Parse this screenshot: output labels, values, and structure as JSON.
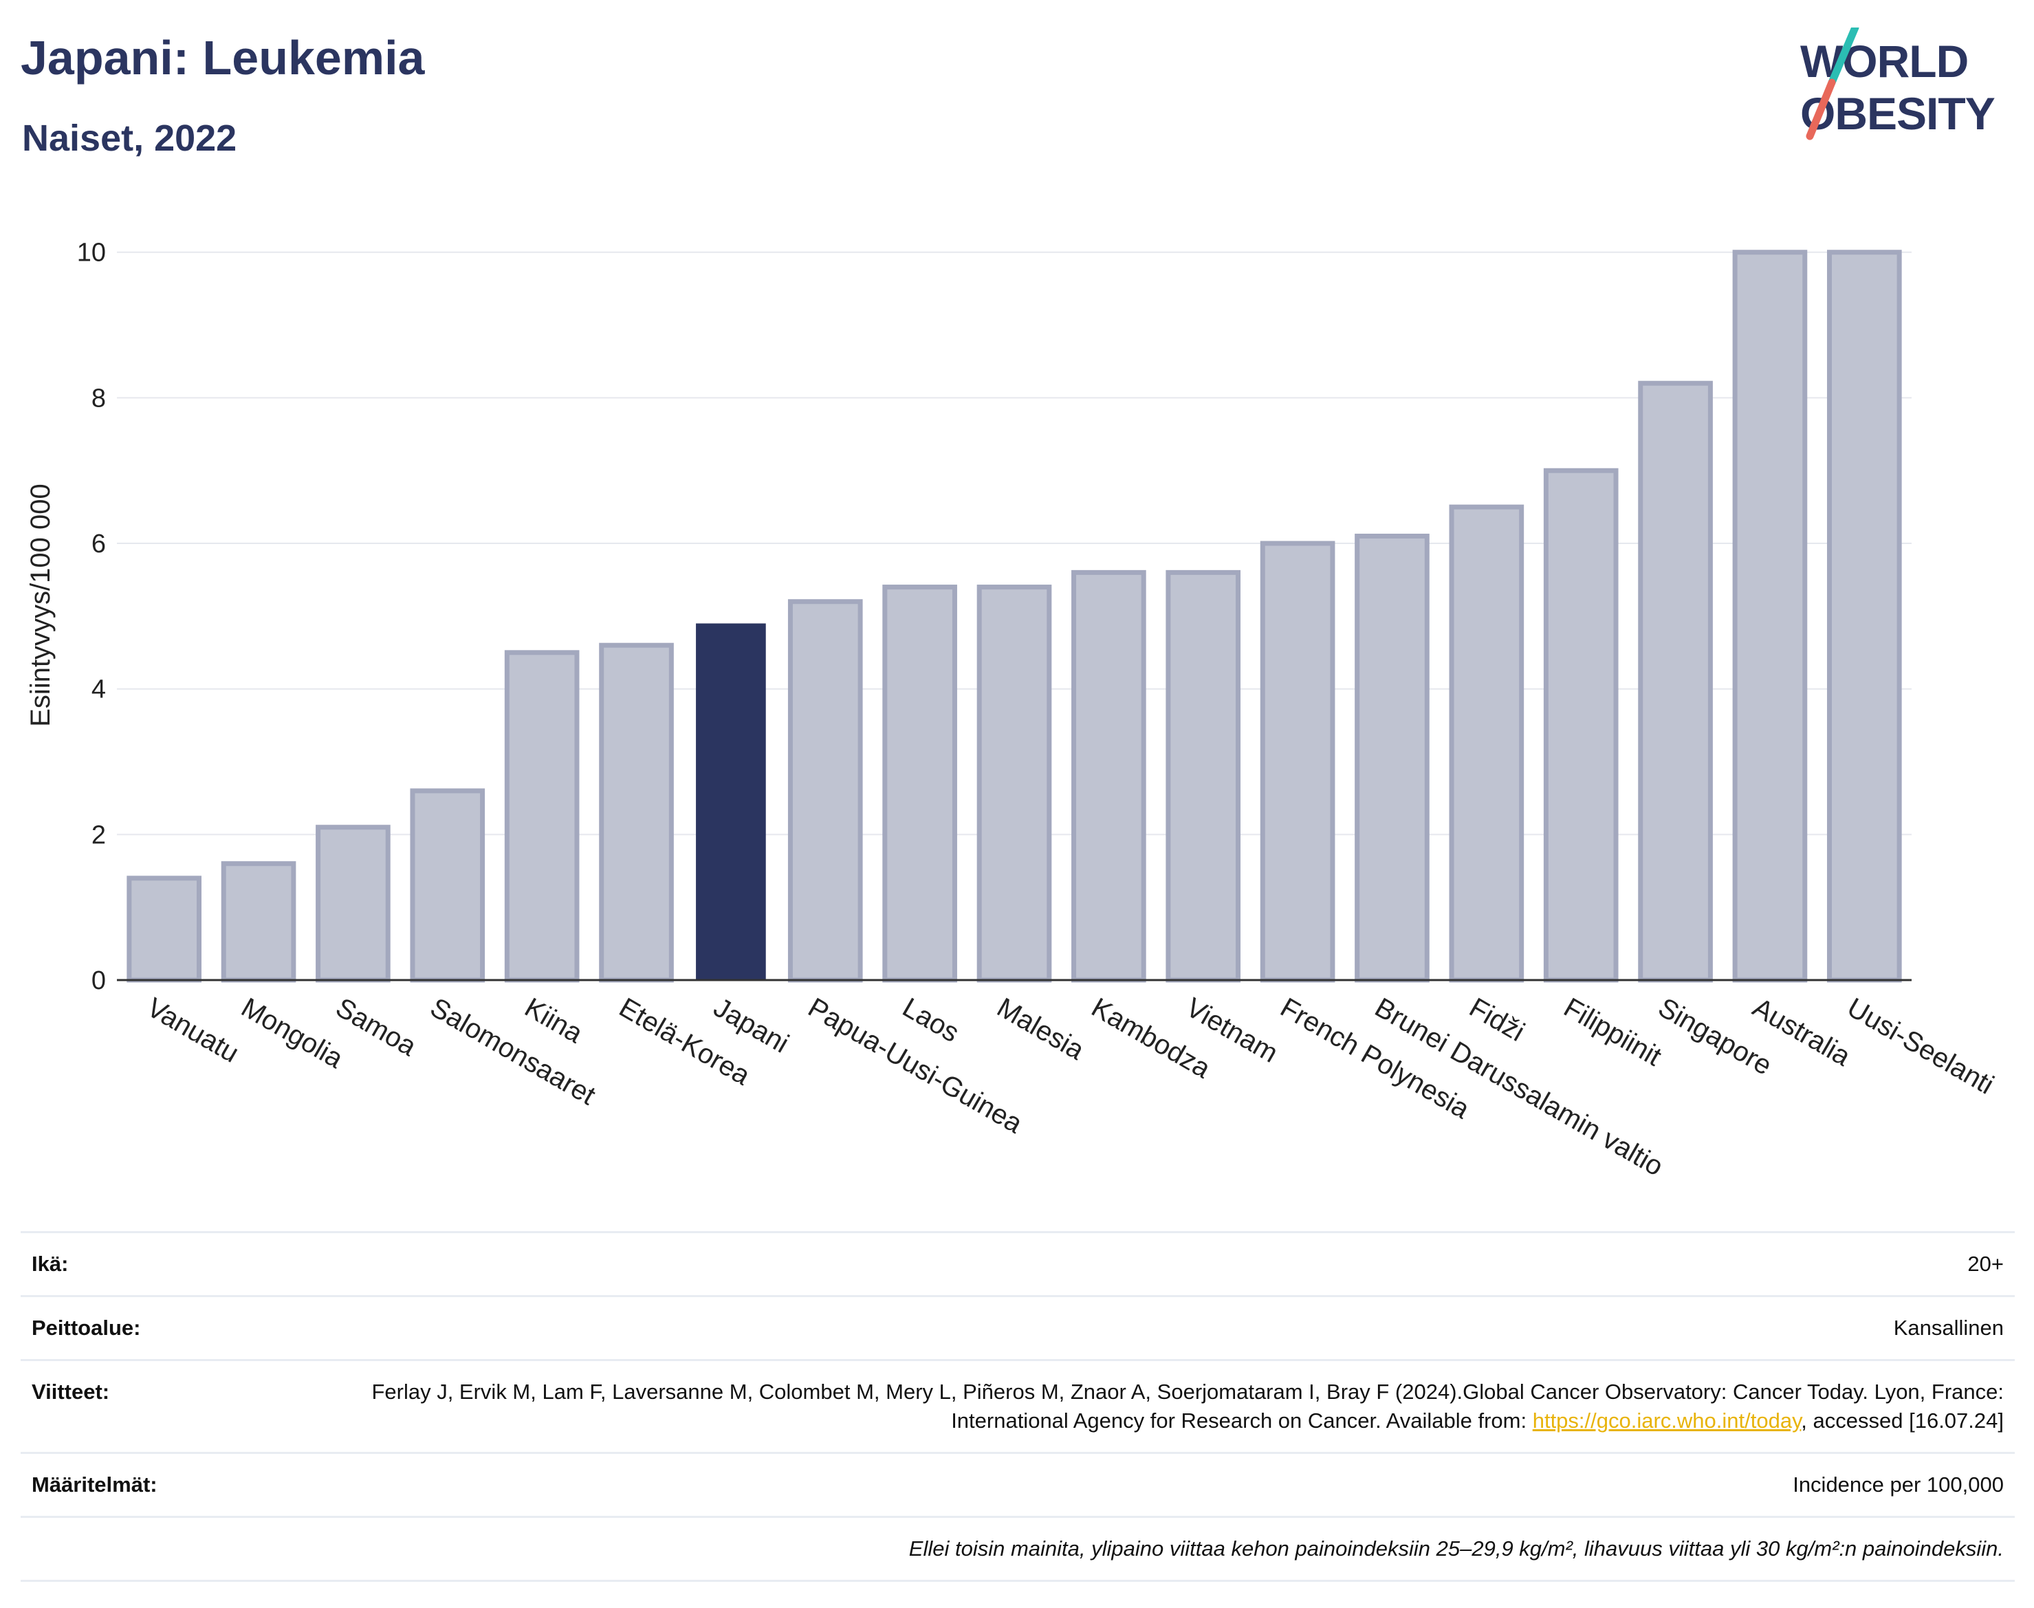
{
  "header": {
    "title": "Japani: Leukemia",
    "subtitle": "Naiset, 2022"
  },
  "logo": {
    "line1": "WORLD",
    "line2": "OBESITY",
    "colors": {
      "text": "#2b3560",
      "accent_teal": "#2bbdb3",
      "accent_red": "#e8685a"
    }
  },
  "chart_data": {
    "type": "bar",
    "title": "Japani: Leukemia",
    "subtitle": "Naiset, 2022",
    "xlabel": "",
    "ylabel": "Esiintyvyys/100 000",
    "ylim": [
      0,
      10.3
    ],
    "yticks": [
      0,
      2,
      4,
      6,
      8,
      10
    ],
    "grid": true,
    "highlight": "Japani",
    "colors": {
      "bar": "#bfc3d1",
      "bar_border": "#a3a8be",
      "highlight": "#2b3560"
    },
    "categories": [
      "Vanuatu",
      "Mongolia",
      "Samoa",
      "Salomonsaaret",
      "Kiina",
      "Etelä-Korea",
      "Japani",
      "Papua-Uusi-Guinea",
      "Laos",
      "Malesia",
      "Kambodza",
      "Vietnam",
      "French Polynesia",
      "Brunei Darussalamin valtio",
      "Fidži",
      "Filippiinit",
      "Singapore",
      "Australia",
      "Uusi-Seelanti"
    ],
    "values": [
      1.4,
      1.6,
      2.1,
      2.6,
      4.5,
      4.6,
      4.9,
      5.2,
      5.4,
      5.4,
      5.6,
      5.6,
      6.0,
      6.1,
      6.5,
      7.0,
      8.2,
      10.0,
      10.0
    ]
  },
  "meta": {
    "age_label": "Ikä:",
    "age_value": "20+",
    "coverage_label": "Peittoalue:",
    "coverage_value": "Kansallinen",
    "refs_label": "Viitteet:",
    "refs_text": "Ferlay J, Ervik M, Lam F, Laversanne M, Colombet M, Mery L, Piñeros M, Znaor A, Soerjomataram I, Bray F (2024).Global Cancer Observatory: Cancer Today. Lyon, France: International Agency for Research on Cancer. Available from: ",
    "refs_link": "https://gco.iarc.who.int/today",
    "refs_suffix": ", accessed [16.07.24]",
    "definitions_label": "Määritelmät:",
    "definitions_value": "Incidence per 100,000",
    "note": "Ellei toisin mainita, ylipaino viittaa kehon painoindeksiin 25–29,9 kg/m², lihavuus viittaa yli 30 kg/m²:n painoindeksiin."
  }
}
